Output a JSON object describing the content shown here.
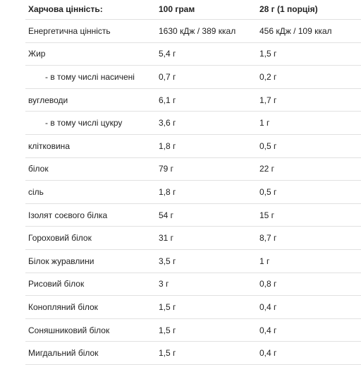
{
  "header": {
    "col1": "Харчова цінність:",
    "col2": "100 грам",
    "col3": "28 г (1 порція)"
  },
  "rows": [
    {
      "name": "Енергетична цінність",
      "per100": "1630 кДж / 389 ккал",
      "perServing": "456 кДж / 109 ккал"
    },
    {
      "name": "Жир",
      "per100": "5,4 г",
      "perServing": "1,5 г"
    },
    {
      "name": "- в тому числі насичені",
      "per100": "0,7 г",
      "perServing": "0,2 г"
    },
    {
      "name": "вуглеводи",
      "per100": "6,1 г",
      "perServing": "1,7 г"
    },
    {
      "name": "- в тому числі цукру",
      "per100": "3,6 г",
      "perServing": "1 г"
    },
    {
      "name": "клітковина",
      "per100": "1,8 г",
      "perServing": "0,5 г"
    },
    {
      "name": "білок",
      "per100": "79 г",
      "perServing": "22 г"
    },
    {
      "name": "сіль",
      "per100": "1,8 г",
      "perServing": "0,5 г"
    },
    {
      "name": "Ізолят соєвого білка",
      "per100": "54 г",
      "perServing": "15 г"
    },
    {
      "name": "Гороховий білок",
      "per100": "31 г",
      "perServing": "8,7 г"
    },
    {
      "name": "Білок журавлини",
      "per100": "3,5 г",
      "perServing": "1 г"
    },
    {
      "name": "Рисовий білок",
      "per100": "3 г",
      "perServing": "0,8 г"
    },
    {
      "name": "Конопляний білок",
      "per100": "1,5 г",
      "perServing": "0,4 г"
    },
    {
      "name": "Соняшниковий білок",
      "per100": "1,5 г",
      "perServing": "0,4 г"
    },
    {
      "name": "Мигдальний білок",
      "per100": "1,5 г",
      "perServing": "0,4 г"
    }
  ]
}
